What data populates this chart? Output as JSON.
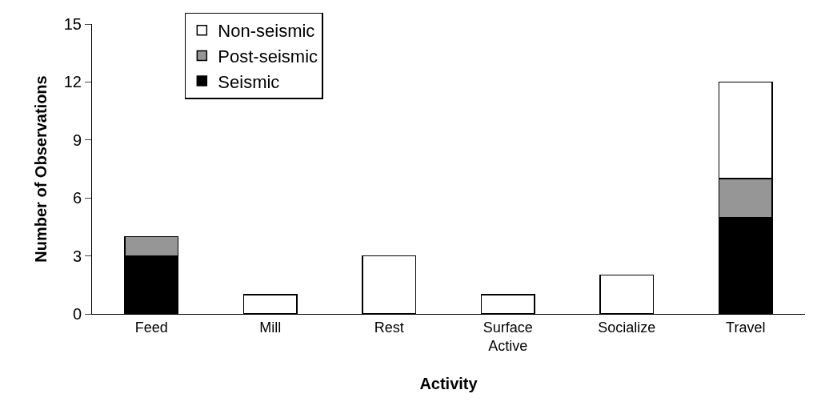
{
  "chart_data": {
    "type": "bar",
    "stacked": true,
    "xlabel": "Activity",
    "ylabel": "Number of Observations",
    "categories": [
      "Feed",
      "Mill",
      "Rest",
      "Surface Active",
      "Socialize",
      "Travel"
    ],
    "series": [
      {
        "name": "Seismic",
        "color": "#000000",
        "values": [
          3,
          0,
          0,
          0,
          0,
          5
        ]
      },
      {
        "name": "Post-seismic",
        "color": "#969696",
        "values": [
          1,
          0,
          0,
          0,
          0,
          2
        ]
      },
      {
        "name": "Non-seismic",
        "color": "#ffffff",
        "values": [
          0,
          1,
          3,
          1,
          2,
          5
        ]
      }
    ],
    "ylim": [
      0,
      15
    ],
    "yticks": [
      0,
      3,
      6,
      9,
      12,
      15
    ],
    "legend": "top left"
  }
}
